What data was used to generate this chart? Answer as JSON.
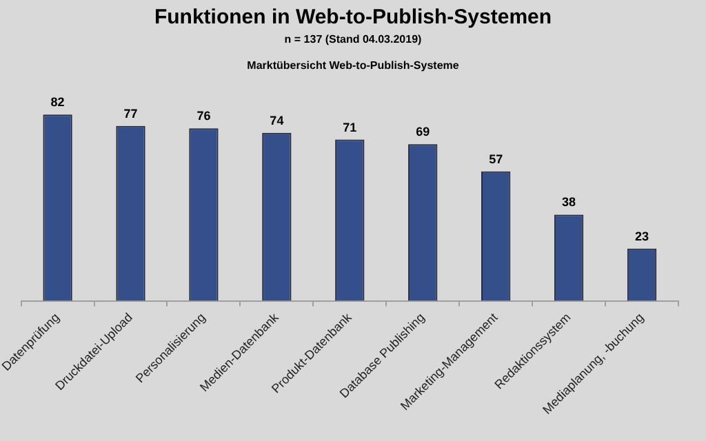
{
  "chart_data": {
    "type": "bar",
    "title": "Funktionen in Web-to-Publish-Systemen",
    "subtitle": "n = 137 (Stand 04.03.2019)",
    "annotations": [
      "Marktübersicht Web-to-Publish-Systeme"
    ],
    "categories": [
      "Datenprüfung",
      "Druckdatei-Upload",
      "Personalisierung",
      "Medien-Datenbank",
      "Produkt-Datenbank",
      "Database Publishing",
      "Marketing-Management",
      "Redaktionssystem",
      "Mediaplanung, -buchung"
    ],
    "values": [
      82,
      77,
      76,
      74,
      71,
      69,
      57,
      38,
      23
    ],
    "color": "#344f8a",
    "data_labels": true,
    "grid": false,
    "legend": false
  }
}
